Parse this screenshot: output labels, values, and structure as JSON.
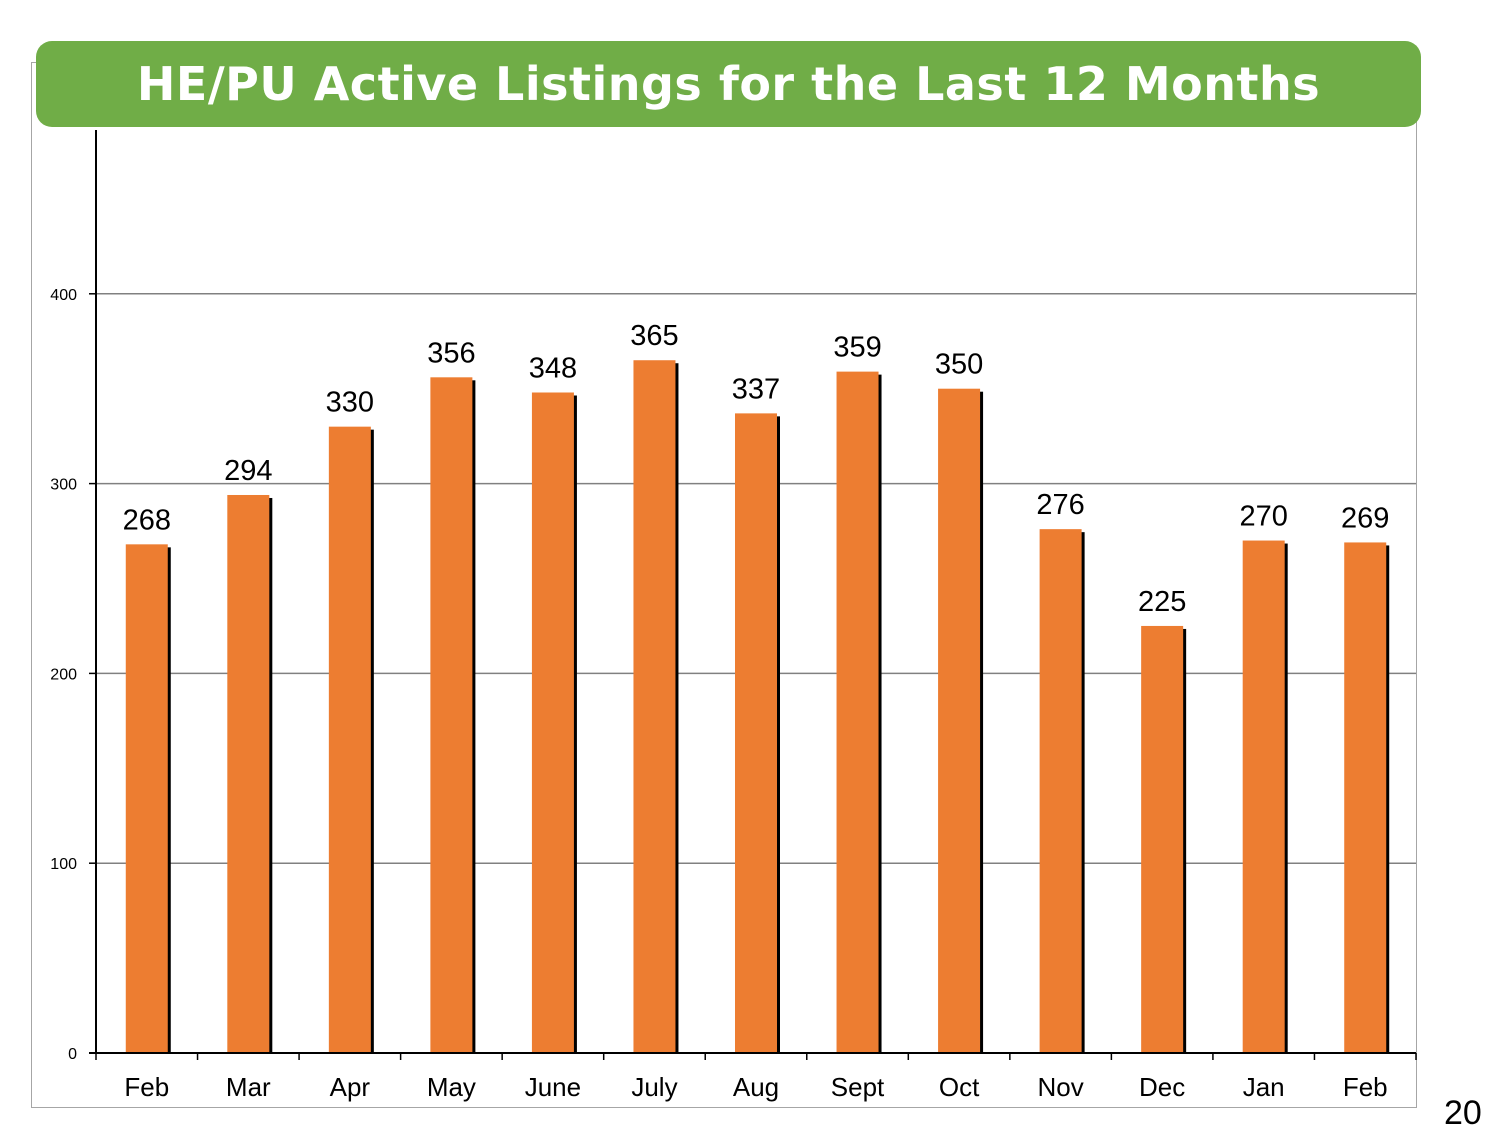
{
  "page_number": "20",
  "chart_data": {
    "type": "bar",
    "title": "HE/PU Active Listings for the Last 12 Months",
    "categories": [
      "Feb",
      "Mar",
      "Apr",
      "May",
      "June",
      "July",
      "Aug",
      "Sept",
      "Oct",
      "Nov",
      "Dec",
      "Jan",
      "Feb"
    ],
    "series": [
      {
        "values": [
          268,
          294,
          330,
          356,
          348,
          365,
          337,
          359,
          350,
          276,
          225,
          270,
          269
        ]
      }
    ],
    "data_labels": [
      "268",
      "294",
      "330",
      "356",
      "348",
      "365",
      "337",
      "359",
      "350",
      "276",
      "225",
      "270",
      "269"
    ],
    "yticks": [
      0,
      100,
      200,
      300,
      400
    ],
    "ytick_labels": [
      "0",
      "100",
      "200",
      "300",
      "400"
    ],
    "ylim": [
      0,
      480
    ],
    "grid": true,
    "legend": "none",
    "xlabel": "",
    "ylabel": "",
    "colors": {
      "bar": "#ed7d31",
      "bar_shadow": "#000000",
      "title_banner": "#70ad47",
      "title_text": "#ffffff",
      "gridline": "#808080",
      "axis": "#000000"
    }
  }
}
